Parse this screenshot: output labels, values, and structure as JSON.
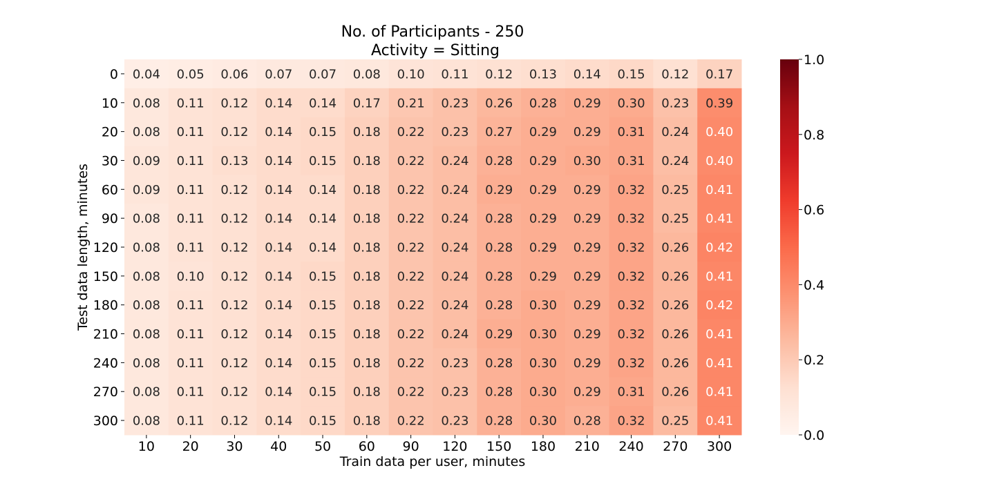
{
  "chart_data": {
    "type": "heatmap",
    "title": "No. of Participants - 250",
    "subtitle": "Activity = Sitting",
    "xlabel": "Train data per user, minutes",
    "ylabel": "Test data length, minutes",
    "x_categories": [
      "10",
      "20",
      "30",
      "40",
      "50",
      "60",
      "90",
      "120",
      "150",
      "180",
      "210",
      "240",
      "270",
      "300"
    ],
    "y_categories": [
      "0",
      "10",
      "20",
      "30",
      "60",
      "90",
      "120",
      "150",
      "180",
      "210",
      "240",
      "270",
      "300"
    ],
    "values": [
      [
        0.04,
        0.05,
        0.06,
        0.07,
        0.07,
        0.08,
        0.1,
        0.11,
        0.12,
        0.13,
        0.14,
        0.15,
        0.12,
        0.17
      ],
      [
        0.08,
        0.11,
        0.12,
        0.14,
        0.14,
        0.17,
        0.21,
        0.23,
        0.26,
        0.28,
        0.29,
        0.3,
        0.23,
        0.39
      ],
      [
        0.08,
        0.11,
        0.12,
        0.14,
        0.15,
        0.18,
        0.22,
        0.23,
        0.27,
        0.29,
        0.29,
        0.31,
        0.24,
        0.4
      ],
      [
        0.09,
        0.11,
        0.13,
        0.14,
        0.15,
        0.18,
        0.22,
        0.24,
        0.28,
        0.29,
        0.3,
        0.31,
        0.24,
        0.4
      ],
      [
        0.09,
        0.11,
        0.12,
        0.14,
        0.14,
        0.18,
        0.22,
        0.24,
        0.29,
        0.29,
        0.29,
        0.32,
        0.25,
        0.41
      ],
      [
        0.08,
        0.11,
        0.12,
        0.14,
        0.14,
        0.18,
        0.22,
        0.24,
        0.28,
        0.29,
        0.29,
        0.32,
        0.25,
        0.41
      ],
      [
        0.08,
        0.11,
        0.12,
        0.14,
        0.14,
        0.18,
        0.22,
        0.24,
        0.28,
        0.29,
        0.29,
        0.32,
        0.26,
        0.42
      ],
      [
        0.08,
        0.1,
        0.12,
        0.14,
        0.15,
        0.18,
        0.22,
        0.24,
        0.28,
        0.29,
        0.29,
        0.32,
        0.26,
        0.41
      ],
      [
        0.08,
        0.11,
        0.12,
        0.14,
        0.15,
        0.18,
        0.22,
        0.24,
        0.28,
        0.3,
        0.29,
        0.32,
        0.26,
        0.42
      ],
      [
        0.08,
        0.11,
        0.12,
        0.14,
        0.15,
        0.18,
        0.22,
        0.24,
        0.29,
        0.3,
        0.29,
        0.32,
        0.26,
        0.41
      ],
      [
        0.08,
        0.11,
        0.12,
        0.14,
        0.15,
        0.18,
        0.22,
        0.23,
        0.28,
        0.3,
        0.29,
        0.32,
        0.26,
        0.41
      ],
      [
        0.08,
        0.11,
        0.12,
        0.14,
        0.15,
        0.18,
        0.22,
        0.23,
        0.28,
        0.3,
        0.29,
        0.31,
        0.26,
        0.41
      ],
      [
        0.08,
        0.11,
        0.12,
        0.14,
        0.15,
        0.18,
        0.22,
        0.23,
        0.28,
        0.3,
        0.28,
        0.32,
        0.25,
        0.41
      ]
    ],
    "value_format": "2 decimals",
    "colormap": "Reds",
    "vmin": 0.0,
    "vmax": 1.0,
    "colorbar_ticks": [
      "0.0",
      "0.2",
      "0.4",
      "0.6",
      "0.8",
      "1.0"
    ],
    "colorbar_placement": "right",
    "grid": false
  }
}
